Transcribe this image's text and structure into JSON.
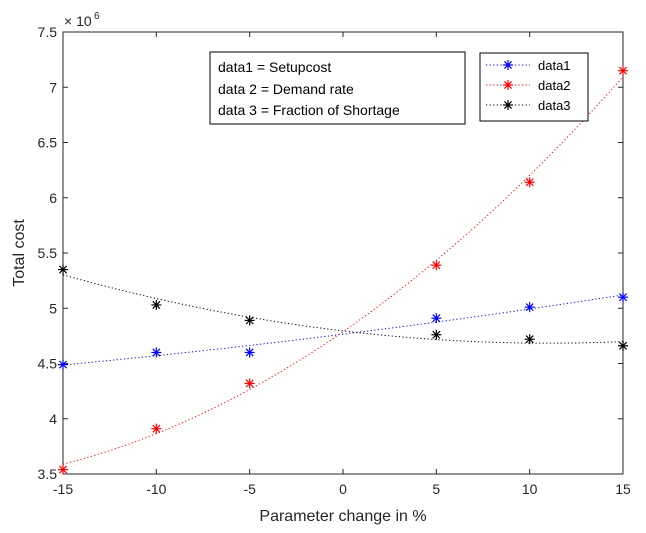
{
  "chart_data": {
    "type": "line",
    "xlabel": "Parameter change in %",
    "ylabel": "Total cost",
    "y_multiplier_base": "× 10",
    "y_multiplier_exp": "6",
    "xlim": [
      -15,
      15
    ],
    "ylim": [
      3.5,
      7.5
    ],
    "x_ticks": [
      "-15",
      "-10",
      "-5",
      "0",
      "5",
      "10",
      "15"
    ],
    "y_ticks": [
      "3.5",
      "4",
      "4.5",
      "5",
      "5.5",
      "6",
      "6.5",
      "7",
      "7.5"
    ],
    "grid": false,
    "legend_position": "top-right",
    "x": [
      -15,
      -10,
      -5,
      5,
      10,
      15
    ],
    "series": [
      {
        "name": "data1",
        "color": "#0000ff",
        "marker": "asterisk",
        "line": "dotted",
        "values": [
          4.49,
          4.6,
          4.6,
          4.91,
          5.01,
          5.1
        ]
      },
      {
        "name": "data2",
        "color": "#ff0000",
        "marker": "asterisk",
        "line": "dotted",
        "values": [
          3.54,
          3.91,
          4.32,
          5.39,
          6.14,
          7.15
        ]
      },
      {
        "name": "data3",
        "color": "#000000",
        "marker": "asterisk",
        "line": "dotted",
        "values": [
          5.35,
          5.03,
          4.89,
          4.76,
          4.72,
          4.66
        ]
      }
    ],
    "annotation_lines": [
      "data1 = Setupcost",
      "data 2 = Demand rate",
      "data 3 = Fraction of Shortage"
    ]
  }
}
